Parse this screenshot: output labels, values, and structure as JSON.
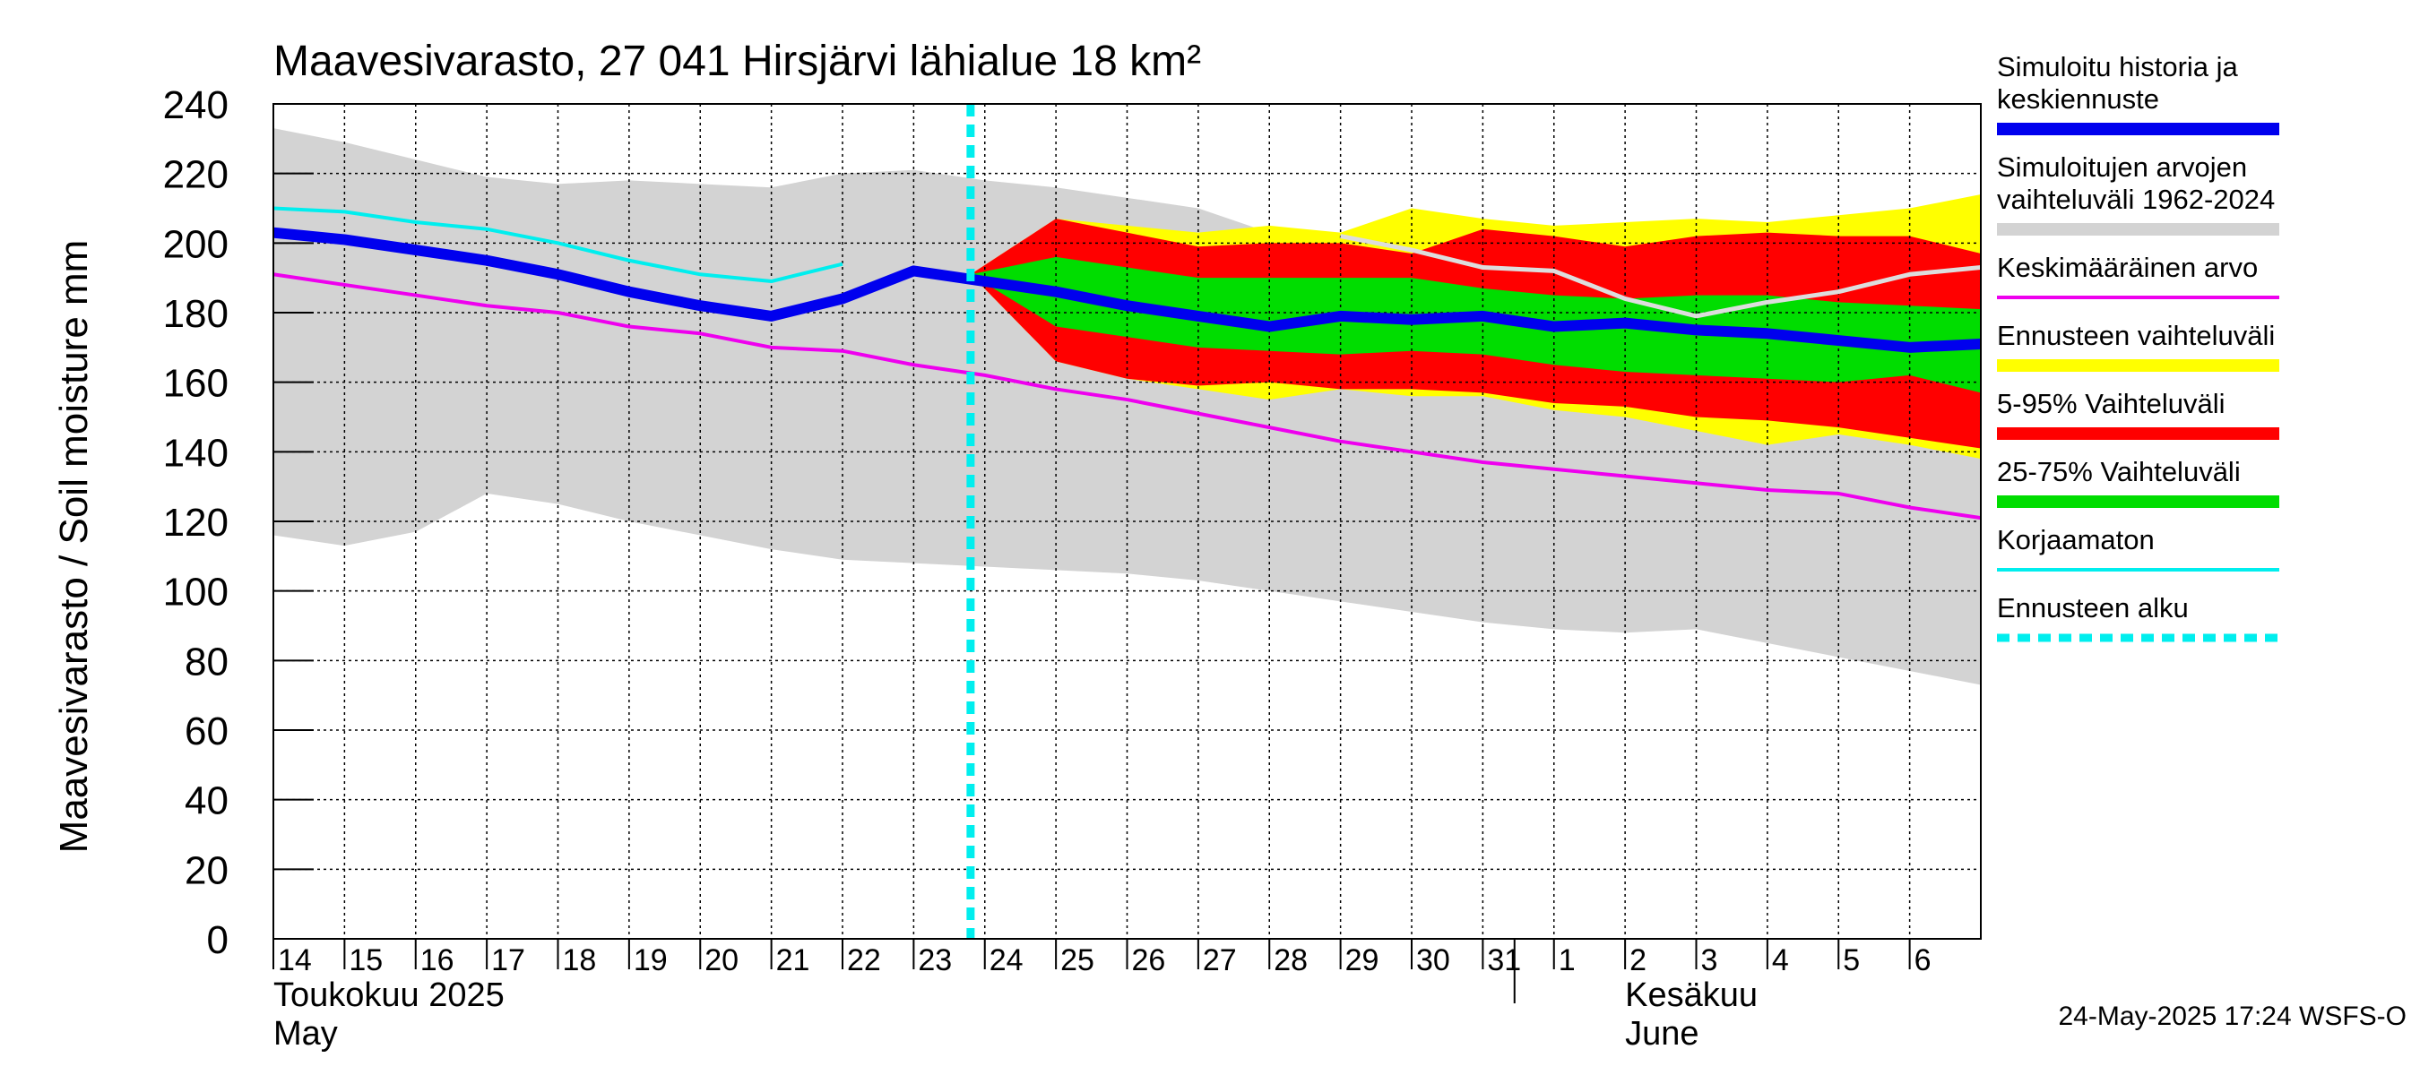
{
  "chart_data": {
    "type": "line",
    "title": "Maavesivarasto, 27 041 Hirsjärvi lähialue 18 km²",
    "ylabel": "Maavesivarasto / Soil moisture   mm",
    "ylim": [
      0,
      240
    ],
    "yticks": [
      0,
      20,
      40,
      60,
      80,
      100,
      120,
      140,
      160,
      180,
      200,
      220,
      240
    ],
    "grid": true,
    "x_labels": [
      "14",
      "15",
      "16",
      "17",
      "18",
      "19",
      "20",
      "21",
      "22",
      "23",
      "24",
      "25",
      "26",
      "27",
      "28",
      "29",
      "30",
      "31",
      "1",
      "2",
      "3",
      "4",
      "5",
      "6"
    ],
    "month_labels": [
      {
        "line1": "Toukokuu  2025",
        "line2": "May"
      },
      {
        "line1": "Kesäkuu",
        "line2": "June"
      }
    ],
    "forecast_start_day": 23.8,
    "series": [
      {
        "name": "Simuloitujen arvojen vaihteluväli 1962-2024",
        "kind": "band",
        "color": "#d3d3d3",
        "x": [
          14,
          15,
          16,
          17,
          18,
          19,
          20,
          21,
          22,
          23,
          24,
          25,
          26,
          27,
          28,
          29,
          30,
          31,
          32,
          33,
          34,
          35,
          36,
          37,
          38
        ],
        "upper": [
          233,
          229,
          224,
          219,
          217,
          218,
          217,
          216,
          220,
          221,
          218,
          216,
          213,
          210,
          203,
          198,
          193,
          191,
          190,
          187,
          185,
          184,
          183,
          181,
          179
        ],
        "lower": [
          116,
          113,
          117,
          128,
          125,
          120,
          116,
          112,
          109,
          108,
          107,
          106,
          105,
          103,
          100,
          97,
          94,
          91,
          89,
          88,
          89,
          85,
          81,
          77,
          73
        ]
      },
      {
        "name": "Ennusteen vaihteluväli",
        "kind": "band",
        "color": "#ffff00",
        "x": [
          23.8,
          25,
          26,
          27,
          28,
          29,
          30,
          31,
          32,
          33,
          34,
          35,
          36,
          37,
          38
        ],
        "upper": [
          191,
          207,
          205,
          203,
          205,
          203,
          210,
          207,
          205,
          206,
          207,
          206,
          208,
          210,
          214
        ],
        "lower": [
          191,
          166,
          161,
          158,
          155,
          158,
          156,
          156,
          152,
          150,
          146,
          142,
          145,
          142,
          138
        ]
      },
      {
        "name": "5-95% Vaihteluväli",
        "kind": "band",
        "color": "#ff0000",
        "x": [
          23.8,
          25,
          26,
          27,
          28,
          29,
          30,
          31,
          32,
          33,
          34,
          35,
          36,
          37,
          38
        ],
        "upper": [
          191,
          207,
          203,
          199,
          200,
          200,
          197,
          204,
          202,
          199,
          202,
          203,
          202,
          202,
          197
        ],
        "lower": [
          191,
          166,
          161,
          159,
          160,
          158,
          158,
          157,
          154,
          153,
          150,
          149,
          147,
          144,
          141
        ]
      },
      {
        "name": "25-75% Vaihteluväli",
        "kind": "band",
        "color": "#00dd00",
        "x": [
          23.8,
          25,
          26,
          27,
          28,
          29,
          30,
          31,
          32,
          33,
          34,
          35,
          36,
          37,
          38
        ],
        "upper": [
          191,
          196,
          193,
          190,
          190,
          190,
          190,
          187,
          185,
          184,
          185,
          185,
          183,
          182,
          181
        ],
        "lower": [
          191,
          176,
          173,
          170,
          169,
          168,
          169,
          168,
          165,
          163,
          162,
          161,
          160,
          162,
          157
        ]
      },
      {
        "name": "Keskimääräinen arvo",
        "kind": "line",
        "color": "#ee00ee",
        "x": [
          14,
          15,
          16,
          17,
          18,
          19,
          20,
          21,
          22,
          23,
          24,
          25,
          26,
          27,
          28,
          29,
          30,
          31,
          32,
          33,
          34,
          35,
          36,
          37,
          38
        ],
        "y": [
          191,
          188,
          185,
          182,
          180,
          176,
          174,
          170,
          169,
          165,
          162,
          158,
          155,
          151,
          147,
          143,
          140,
          137,
          135,
          133,
          131,
          129,
          128,
          124,
          121
        ]
      },
      {
        "name": "Korjaamaton",
        "kind": "line",
        "color": "#00eeee",
        "x": [
          14,
          15,
          16,
          17,
          18,
          19,
          20,
          21,
          22
        ],
        "y": [
          210,
          209,
          206,
          204,
          200,
          195,
          191,
          189,
          194
        ]
      },
      {
        "name": "",
        "kind": "line",
        "color": "#dddddd",
        "x": [
          29,
          30,
          31,
          32,
          33,
          34,
          35,
          36,
          37,
          38
        ],
        "y": [
          202,
          198,
          193,
          192,
          184,
          179,
          183,
          186,
          191,
          193
        ]
      },
      {
        "name": "Simuloitu historia ja keskiennuste",
        "kind": "line",
        "color": "#0000ee",
        "x": [
          14,
          15,
          16,
          17,
          18,
          19,
          20,
          21,
          22,
          23,
          24,
          25,
          26,
          27,
          28,
          29,
          30,
          31,
          32,
          33,
          34,
          35,
          36,
          37,
          38
        ],
        "y": [
          203,
          201,
          198,
          195,
          191,
          186,
          182,
          179,
          184,
          192,
          189,
          186,
          182,
          179,
          176,
          179,
          178,
          179,
          176,
          177,
          175,
          174,
          172,
          170,
          171
        ]
      }
    ]
  },
  "legend": [
    {
      "label": "Simuloitu historia ja keskiennuste",
      "color": "#0000ee",
      "style": "thick"
    },
    {
      "label": "Simuloitujen arvojen vaihteluväli 1962-2024",
      "color": "#d3d3d3",
      "style": "thick"
    },
    {
      "label": "Keskimääräinen arvo",
      "color": "#ee00ee",
      "style": "thin"
    },
    {
      "label": "Ennusteen vaihteluväli",
      "color": "#ffff00",
      "style": "thick"
    },
    {
      "label": "5-95% Vaihteluväli",
      "color": "#ff0000",
      "style": "thick"
    },
    {
      "label": "25-75% Vaihteluväli",
      "color": "#00dd00",
      "style": "thick"
    },
    {
      "label": "Korjaamaton",
      "color": "#00eeee",
      "style": "thin"
    },
    {
      "label": "Ennusteen alku",
      "color": "#00eeee",
      "style": "dashed"
    }
  ],
  "footer": "24-May-2025 17:24 WSFS-O"
}
